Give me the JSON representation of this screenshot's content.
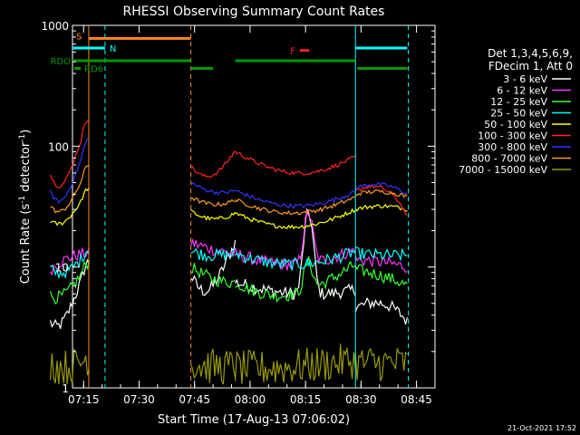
{
  "chart_data": {
    "type": "line",
    "title": "RHESSI Observing Summary Count Rates",
    "xlabel": "Start Time (17-Aug-13 07:06:02)",
    "ylabel_main": "Count Rate (s",
    "ylabel_sup1": "-1",
    "ylabel_mid": " detector",
    "ylabel_sup2": "-1",
    "ylabel_end": ")",
    "y_scale": "log",
    "ylim": [
      1,
      1000
    ],
    "xlim": [
      6.0,
      104.0
    ],
    "x_unit": "minutes after 07:06:02 (tick labels shown as clock times)",
    "x_ticks": [
      {
        "v": 9,
        "label": "07:15"
      },
      {
        "v": 24,
        "label": "07:30"
      },
      {
        "v": 39,
        "label": "07:45"
      },
      {
        "v": 54,
        "label": "08:00"
      },
      {
        "v": 69,
        "label": "08:15"
      },
      {
        "v": 84,
        "label": "08:30"
      },
      {
        "v": 99,
        "label": "08:45"
      }
    ],
    "y_ticks": [
      {
        "v": 1,
        "label": "1"
      },
      {
        "v": 10,
        "label": "10"
      },
      {
        "v": 100,
        "label": "100"
      },
      {
        "v": 1000,
        "label": "1000"
      }
    ],
    "legend_header": [
      "Det 1,3,4,5,6,9,",
      "FDecim 1, Att 0"
    ],
    "legend_position": "right, outside plot",
    "timestamp": "21-Oct-2021 17:52",
    "segments": [
      [
        0.0,
        10.5
      ],
      [
        38.0,
        50.0
      ],
      [
        50.0,
        82.5
      ],
      [
        82.5,
        96.5
      ]
    ],
    "series": [
      {
        "name": "3 - 6 keV",
        "color": "#ffffff",
        "seg": [
          [
            3.5,
            4.5,
            11
          ],
          [
            8.5,
            7,
            16
          ],
          [
            7.5,
            6,
            6.5
          ],
          [
            4.5,
            5,
            3.5
          ]
        ]
      },
      {
        "name": "6 - 12 keV",
        "color": "#ff33ff",
        "seg": [
          [
            9.5,
            12,
            13
          ],
          [
            16,
            14,
            13
          ],
          [
            13,
            10.5,
            14
          ],
          [
            11.5,
            11,
            10
          ]
        ]
      },
      {
        "name": "12 - 25 keV",
        "color": "#33ff33",
        "seg": [
          [
            5.8,
            6.5,
            11
          ],
          [
            10,
            8,
            7.5
          ],
          [
            7.5,
            6,
            10.5
          ],
          [
            9.5,
            8.5,
            7
          ]
        ]
      },
      {
        "name": "25 - 50 keV",
        "color": "#00ffff",
        "seg": [
          [
            9.5,
            9.5,
            14
          ],
          [
            13.5,
            12.5,
            13
          ],
          [
            13,
            10.5,
            13.5
          ],
          [
            13,
            12.5,
            12.5
          ]
        ]
      },
      {
        "name": "50 - 100 keV",
        "color": "#ffff00",
        "seg": [
          [
            24,
            26,
            45
          ],
          [
            29,
            25,
            28
          ],
          [
            28,
            21.5,
            30
          ],
          [
            30,
            32,
            30
          ]
        ]
      },
      {
        "name": "100 - 300 keV",
        "color": "#ff2222",
        "seg": [
          [
            58,
            62,
            170
          ],
          [
            68,
            58,
            92
          ],
          [
            90,
            60,
            82
          ],
          [
            42,
            45,
            26
          ]
        ]
      },
      {
        "name": "300 - 800 keV",
        "color": "#3333ff",
        "seg": [
          [
            42,
            45,
            115
          ],
          [
            50,
            42,
            43
          ],
          [
            43,
            32,
            42
          ],
          [
            45,
            48,
            40
          ]
        ]
      },
      {
        "name": "800 - 7000 keV",
        "color": "#ff9922",
        "seg": [
          [
            32,
            34,
            70
          ],
          [
            38,
            33,
            36
          ],
          [
            36,
            28,
            38
          ],
          [
            40,
            42,
            38
          ]
        ]
      },
      {
        "name": "7000 - 15000 keV",
        "color": "#999900",
        "seg": [
          [
            1.6,
            1.5,
            1.8
          ],
          [
            1.6,
            1.5,
            1.5
          ],
          [
            1.45,
            1.5,
            1.7
          ],
          [
            1.6,
            1.6,
            1.6
          ]
        ]
      }
    ],
    "flare_bump": {
      "center": 69.8,
      "width": 1.5,
      "peaks": {
        "3 - 6 keV": 28,
        "6 - 12 keV": 28,
        "12 - 25 keV": 11
      }
    },
    "orange_vlines": [
      {
        "x": 10.4,
        "style": "solid"
      },
      {
        "x": 38.0,
        "style": "dashed"
      }
    ],
    "cyan_vlines": [
      {
        "x": 14.8,
        "style": "dashed"
      },
      {
        "x": 82.5,
        "style": "solid"
      },
      {
        "x": 96.8,
        "style": "dashed"
      }
    ],
    "state_bars": {
      "S": {
        "label": "S",
        "y": 780,
        "color": "#ff8822",
        "spans": [
          [
            10.4,
            38.0
          ]
        ]
      },
      "N": {
        "label": "N",
        "y": 650,
        "color": "#00ffff",
        "spans": [
          [
            0,
            14.8
          ],
          [
            82.5,
            96.5
          ]
        ]
      },
      "RDO": {
        "label": "RDO",
        "y": 510,
        "color": "#009900",
        "spans": [
          [
            0,
            38.0
          ],
          [
            50.0,
            82.5
          ]
        ]
      },
      "RD6": {
        "label": "RD6",
        "y": 440,
        "color": "#009900",
        "spans": [
          [
            38.0,
            44.0
          ],
          [
            83.0,
            96.5
          ]
        ]
      },
      "F": {
        "label": "F",
        "y": 620,
        "color": "#ff2222",
        "spans": [
          [
            67.5,
            70.0
          ]
        ]
      }
    }
  }
}
